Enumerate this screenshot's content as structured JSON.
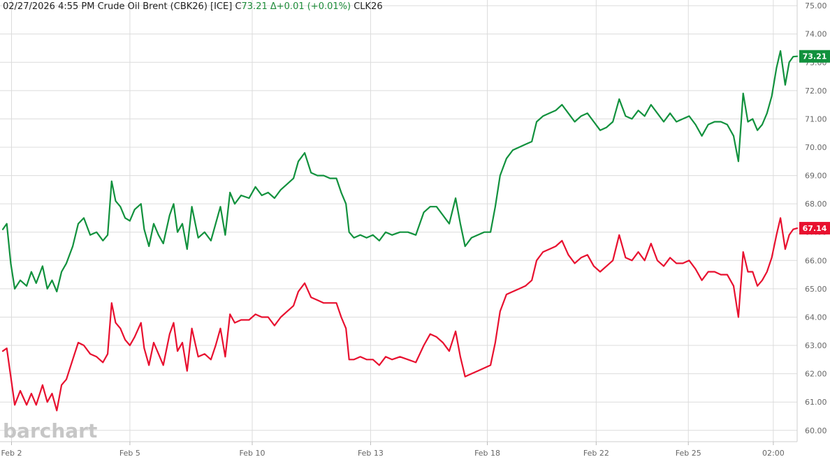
{
  "header": {
    "date": "02/27/2026",
    "time": "4:55 PM",
    "instrument": "Crude Oil Brent (CBK26) [ICE]",
    "close_prefix": "C",
    "close_value": "73.21",
    "change": "Δ+0.01 (+0.01%)",
    "compare_symbol": "CLK26"
  },
  "watermark": "barchart",
  "colors": {
    "series_primary": "#11913d",
    "series_compare": "#e8102f",
    "grid": "#dcdcdc",
    "axis_text": "#666666",
    "background": "#ffffff"
  },
  "chart_data": {
    "type": "line",
    "x_ticks": [
      "Feb 2",
      "Feb 5",
      "Feb 10",
      "Feb 13",
      "Feb 18",
      "Feb 22",
      "Feb 25",
      "02:00"
    ],
    "y_ticks": [
      "60.00",
      "61.00",
      "62.00",
      "63.00",
      "64.00",
      "65.00",
      "66.00",
      "67.00",
      "68.00",
      "69.00",
      "70.00",
      "71.00",
      "72.00",
      "73.00",
      "74.00",
      "75.00"
    ],
    "ylim": [
      59.6,
      75.2
    ],
    "x_domain": [
      0,
      100
    ],
    "x_tick_positions": [
      1.1,
      16.0,
      31.4,
      46.3,
      61.0,
      74.7,
      86.3,
      97.0
    ],
    "grid": true,
    "series": [
      {
        "name": "CBK26",
        "last_label": "73.21",
        "points": [
          [
            0.0,
            67.1
          ],
          [
            0.5,
            67.3
          ],
          [
            1.0,
            65.9
          ],
          [
            1.5,
            65.0
          ],
          [
            2.2,
            65.3
          ],
          [
            3.0,
            65.1
          ],
          [
            3.6,
            65.6
          ],
          [
            4.2,
            65.2
          ],
          [
            5.0,
            65.8
          ],
          [
            5.6,
            65.0
          ],
          [
            6.2,
            65.3
          ],
          [
            6.8,
            64.9
          ],
          [
            7.4,
            65.6
          ],
          [
            8.0,
            65.9
          ],
          [
            8.8,
            66.5
          ],
          [
            9.5,
            67.3
          ],
          [
            10.2,
            67.5
          ],
          [
            11.0,
            66.9
          ],
          [
            11.8,
            67.0
          ],
          [
            12.6,
            66.7
          ],
          [
            13.2,
            66.9
          ],
          [
            13.7,
            68.8
          ],
          [
            14.2,
            68.1
          ],
          [
            14.8,
            67.9
          ],
          [
            15.4,
            67.5
          ],
          [
            16.0,
            67.4
          ],
          [
            16.6,
            67.8
          ],
          [
            17.4,
            68.0
          ],
          [
            17.8,
            67.1
          ],
          [
            18.4,
            66.5
          ],
          [
            19.0,
            67.3
          ],
          [
            19.6,
            66.9
          ],
          [
            20.2,
            66.6
          ],
          [
            21.0,
            67.6
          ],
          [
            21.5,
            68.0
          ],
          [
            22.0,
            67.0
          ],
          [
            22.6,
            67.3
          ],
          [
            23.2,
            66.4
          ],
          [
            23.8,
            67.9
          ],
          [
            24.6,
            66.8
          ],
          [
            25.4,
            67.0
          ],
          [
            26.2,
            66.7
          ],
          [
            26.8,
            67.3
          ],
          [
            27.4,
            67.9
          ],
          [
            28.0,
            66.9
          ],
          [
            28.6,
            68.4
          ],
          [
            29.2,
            68.0
          ],
          [
            30.0,
            68.3
          ],
          [
            31.0,
            68.2
          ],
          [
            31.8,
            68.6
          ],
          [
            32.6,
            68.3
          ],
          [
            33.4,
            68.4
          ],
          [
            34.2,
            68.2
          ],
          [
            35.0,
            68.5
          ],
          [
            35.8,
            68.7
          ],
          [
            36.6,
            68.9
          ],
          [
            37.2,
            69.5
          ],
          [
            38.0,
            69.8
          ],
          [
            38.8,
            69.1
          ],
          [
            39.6,
            69.0
          ],
          [
            40.4,
            69.0
          ],
          [
            41.2,
            68.9
          ],
          [
            42.0,
            68.9
          ],
          [
            42.6,
            68.4
          ],
          [
            43.2,
            68.0
          ],
          [
            43.6,
            67.0
          ],
          [
            44.2,
            66.8
          ],
          [
            45.0,
            66.9
          ],
          [
            45.8,
            66.8
          ],
          [
            46.6,
            66.9
          ],
          [
            47.4,
            66.7
          ],
          [
            48.2,
            67.0
          ],
          [
            49.0,
            66.9
          ],
          [
            50.0,
            67.0
          ],
          [
            51.0,
            67.0
          ],
          [
            52.0,
            66.9
          ],
          [
            53.0,
            67.7
          ],
          [
            53.8,
            67.9
          ],
          [
            54.6,
            67.9
          ],
          [
            55.4,
            67.6
          ],
          [
            56.2,
            67.3
          ],
          [
            57.0,
            68.2
          ],
          [
            57.6,
            67.3
          ],
          [
            58.2,
            66.5
          ],
          [
            59.0,
            66.8
          ],
          [
            59.8,
            66.9
          ],
          [
            60.6,
            67.0
          ],
          [
            61.4,
            67.0
          ],
          [
            62.0,
            67.9
          ],
          [
            62.6,
            69.0
          ],
          [
            63.4,
            69.6
          ],
          [
            64.2,
            69.9
          ],
          [
            65.0,
            70.0
          ],
          [
            65.8,
            70.1
          ],
          [
            66.6,
            70.2
          ],
          [
            67.2,
            70.9
          ],
          [
            68.0,
            71.1
          ],
          [
            68.8,
            71.2
          ],
          [
            69.6,
            71.3
          ],
          [
            70.4,
            71.5
          ],
          [
            71.2,
            71.2
          ],
          [
            72.0,
            70.9
          ],
          [
            72.8,
            71.1
          ],
          [
            73.6,
            71.2
          ],
          [
            74.4,
            70.9
          ],
          [
            75.2,
            70.6
          ],
          [
            76.0,
            70.7
          ],
          [
            76.8,
            70.9
          ],
          [
            77.6,
            71.7
          ],
          [
            78.4,
            71.1
          ],
          [
            79.2,
            71.0
          ],
          [
            80.0,
            71.3
          ],
          [
            80.8,
            71.1
          ],
          [
            81.6,
            71.5
          ],
          [
            82.4,
            71.2
          ],
          [
            83.2,
            70.9
          ],
          [
            84.0,
            71.2
          ],
          [
            84.8,
            70.9
          ],
          [
            85.6,
            71.0
          ],
          [
            86.4,
            71.1
          ],
          [
            87.2,
            70.8
          ],
          [
            88.0,
            70.4
          ],
          [
            88.8,
            70.8
          ],
          [
            89.6,
            70.9
          ],
          [
            90.4,
            70.9
          ],
          [
            91.2,
            70.8
          ],
          [
            92.0,
            70.4
          ],
          [
            92.6,
            69.5
          ],
          [
            93.2,
            71.9
          ],
          [
            93.8,
            70.9
          ],
          [
            94.4,
            71.0
          ],
          [
            95.0,
            70.6
          ],
          [
            95.6,
            70.8
          ],
          [
            96.2,
            71.2
          ],
          [
            96.8,
            71.8
          ],
          [
            97.4,
            72.8
          ],
          [
            97.9,
            73.4
          ],
          [
            98.5,
            72.2
          ],
          [
            99.0,
            73.0
          ],
          [
            99.5,
            73.2
          ],
          [
            100.0,
            73.21
          ]
        ]
      },
      {
        "name": "CLK26",
        "last_label": "67.14",
        "points": [
          [
            0.0,
            62.8
          ],
          [
            0.5,
            62.9
          ],
          [
            1.0,
            61.9
          ],
          [
            1.5,
            60.9
          ],
          [
            2.2,
            61.4
          ],
          [
            3.0,
            60.9
          ],
          [
            3.6,
            61.3
          ],
          [
            4.2,
            60.9
          ],
          [
            5.0,
            61.6
          ],
          [
            5.6,
            61.0
          ],
          [
            6.2,
            61.3
          ],
          [
            6.8,
            60.7
          ],
          [
            7.4,
            61.6
          ],
          [
            8.0,
            61.8
          ],
          [
            8.8,
            62.5
          ],
          [
            9.5,
            63.1
          ],
          [
            10.2,
            63.0
          ],
          [
            11.0,
            62.7
          ],
          [
            11.8,
            62.6
          ],
          [
            12.6,
            62.4
          ],
          [
            13.2,
            62.7
          ],
          [
            13.7,
            64.5
          ],
          [
            14.2,
            63.8
          ],
          [
            14.8,
            63.6
          ],
          [
            15.4,
            63.2
          ],
          [
            16.0,
            63.0
          ],
          [
            16.6,
            63.3
          ],
          [
            17.4,
            63.8
          ],
          [
            17.8,
            62.9
          ],
          [
            18.4,
            62.3
          ],
          [
            19.0,
            63.1
          ],
          [
            19.6,
            62.7
          ],
          [
            20.2,
            62.3
          ],
          [
            21.0,
            63.4
          ],
          [
            21.5,
            63.8
          ],
          [
            22.0,
            62.8
          ],
          [
            22.6,
            63.1
          ],
          [
            23.2,
            62.1
          ],
          [
            23.8,
            63.6
          ],
          [
            24.6,
            62.6
          ],
          [
            25.4,
            62.7
          ],
          [
            26.2,
            62.5
          ],
          [
            26.8,
            63.0
          ],
          [
            27.4,
            63.6
          ],
          [
            28.0,
            62.6
          ],
          [
            28.6,
            64.1
          ],
          [
            29.2,
            63.8
          ],
          [
            30.0,
            63.9
          ],
          [
            31.0,
            63.9
          ],
          [
            31.8,
            64.1
          ],
          [
            32.6,
            64.0
          ],
          [
            33.4,
            64.0
          ],
          [
            34.2,
            63.7
          ],
          [
            35.0,
            64.0
          ],
          [
            35.8,
            64.2
          ],
          [
            36.6,
            64.4
          ],
          [
            37.2,
            64.9
          ],
          [
            38.0,
            65.2
          ],
          [
            38.8,
            64.7
          ],
          [
            39.6,
            64.6
          ],
          [
            40.4,
            64.5
          ],
          [
            41.2,
            64.5
          ],
          [
            42.0,
            64.5
          ],
          [
            42.6,
            64.0
          ],
          [
            43.2,
            63.6
          ],
          [
            43.6,
            62.5
          ],
          [
            44.2,
            62.5
          ],
          [
            45.0,
            62.6
          ],
          [
            45.8,
            62.5
          ],
          [
            46.6,
            62.5
          ],
          [
            47.4,
            62.3
          ],
          [
            48.2,
            62.6
          ],
          [
            49.0,
            62.5
          ],
          [
            50.0,
            62.6
          ],
          [
            51.0,
            62.5
          ],
          [
            52.0,
            62.4
          ],
          [
            53.0,
            63.0
          ],
          [
            53.8,
            63.4
          ],
          [
            54.6,
            63.3
          ],
          [
            55.4,
            63.1
          ],
          [
            56.2,
            62.8
          ],
          [
            57.0,
            63.5
          ],
          [
            57.6,
            62.6
          ],
          [
            58.2,
            61.9
          ],
          [
            59.0,
            62.0
          ],
          [
            59.8,
            62.1
          ],
          [
            60.6,
            62.2
          ],
          [
            61.4,
            62.3
          ],
          [
            62.0,
            63.1
          ],
          [
            62.6,
            64.2
          ],
          [
            63.4,
            64.8
          ],
          [
            64.2,
            64.9
          ],
          [
            65.0,
            65.0
          ],
          [
            65.8,
            65.1
          ],
          [
            66.6,
            65.3
          ],
          [
            67.2,
            66.0
          ],
          [
            68.0,
            66.3
          ],
          [
            68.8,
            66.4
          ],
          [
            69.6,
            66.5
          ],
          [
            70.4,
            66.7
          ],
          [
            71.2,
            66.2
          ],
          [
            72.0,
            65.9
          ],
          [
            72.8,
            66.1
          ],
          [
            73.6,
            66.2
          ],
          [
            74.4,
            65.8
          ],
          [
            75.2,
            65.6
          ],
          [
            76.0,
            65.8
          ],
          [
            76.8,
            66.0
          ],
          [
            77.6,
            66.9
          ],
          [
            78.4,
            66.1
          ],
          [
            79.2,
            66.0
          ],
          [
            80.0,
            66.3
          ],
          [
            80.8,
            66.0
          ],
          [
            81.6,
            66.6
          ],
          [
            82.4,
            66.0
          ],
          [
            83.2,
            65.8
          ],
          [
            84.0,
            66.1
          ],
          [
            84.8,
            65.9
          ],
          [
            85.6,
            65.9
          ],
          [
            86.4,
            66.0
          ],
          [
            87.2,
            65.7
          ],
          [
            88.0,
            65.3
          ],
          [
            88.8,
            65.6
          ],
          [
            89.6,
            65.6
          ],
          [
            90.4,
            65.5
          ],
          [
            91.2,
            65.5
          ],
          [
            92.0,
            65.1
          ],
          [
            92.6,
            64.0
          ],
          [
            93.2,
            66.3
          ],
          [
            93.8,
            65.6
          ],
          [
            94.4,
            65.6
          ],
          [
            95.0,
            65.1
          ],
          [
            95.6,
            65.3
          ],
          [
            96.2,
            65.6
          ],
          [
            96.8,
            66.1
          ],
          [
            97.4,
            66.9
          ],
          [
            97.9,
            67.5
          ],
          [
            98.5,
            66.4
          ],
          [
            99.0,
            66.9
          ],
          [
            99.5,
            67.1
          ],
          [
            100.0,
            67.14
          ]
        ]
      }
    ]
  }
}
